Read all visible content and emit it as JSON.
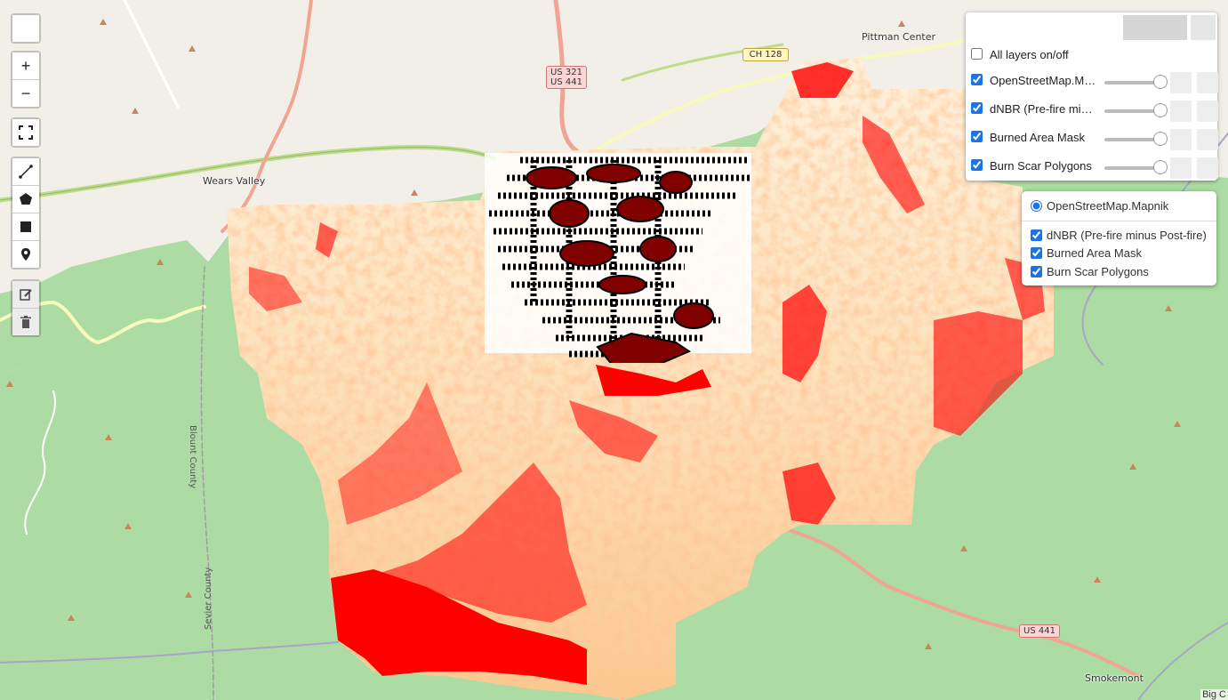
{
  "map": {
    "place_labels": [
      {
        "name": "wears-valley-label",
        "text": "Wears Valley"
      },
      {
        "name": "pittman-center-label",
        "text": "Pittman Center"
      },
      {
        "name": "smokemont-label",
        "text": "Smokemont"
      }
    ],
    "county_labels": [
      {
        "name": "blount-county-label",
        "text": "Blount County"
      },
      {
        "name": "sevier-county-label",
        "text": "Sevier County"
      }
    ],
    "shields": {
      "us321": "US 321",
      "us441_top": "US 441",
      "ch128": "CH 128",
      "us441_bottom": "US 441"
    },
    "attribution": "Big C"
  },
  "controls": {
    "top_toggle_icon": "",
    "zoom_in": "+",
    "zoom_out": "−",
    "fullscreen_icon": "fullscreen-icon",
    "draw_tools": [
      "polyline-icon",
      "polygon-icon",
      "rectangle-icon",
      "marker-icon"
    ],
    "edit_tools": [
      "edit-icon",
      "delete-icon"
    ]
  },
  "layer_panel": {
    "header_buttons": [
      "",
      ""
    ],
    "all_layers_label": "All layers on/off",
    "all_layers_checked": false,
    "layers": [
      {
        "label": "OpenStreetMap.Mapnik",
        "checked": true,
        "opacity": 1.0
      },
      {
        "label": "dNBR (Pre-fire minus Post-fire)",
        "checked": true,
        "opacity": 1.0
      },
      {
        "label": "Burned Area Mask",
        "checked": true,
        "opacity": 1.0
      },
      {
        "label": "Burn Scar Polygons",
        "checked": true,
        "opacity": 1.0
      }
    ],
    "button_glyph": ""
  },
  "layers_control": {
    "basemap": "OpenStreetMap.Mapnik",
    "overlays": [
      {
        "label": "dNBR (Pre-fire minus Post-fire)",
        "checked": true
      },
      {
        "label": "Burned Area Mask",
        "checked": true
      },
      {
        "label": "Burn Scar Polygons",
        "checked": true
      }
    ]
  },
  "colors": {
    "park_green": "#addba4",
    "land": "#f2efe9",
    "dnbr_light": "#fff3e0",
    "dnbr_mid": "#fdd49e",
    "burn_red": "#ff0000",
    "scar_fill": "#800000",
    "scar_outline": "#000000",
    "road_primary": "#f0a593",
    "road_secondary": "#bedc8a"
  }
}
